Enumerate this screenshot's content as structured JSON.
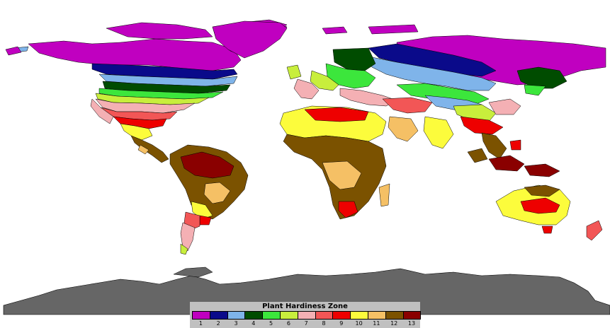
{
  "legend": {
    "title": "Plant Hardiness Zone",
    "zones": [
      {
        "label": "1",
        "color": "#c000c0"
      },
      {
        "label": "2",
        "color": "#0a0a8a"
      },
      {
        "label": "3",
        "color": "#7fb4ea"
      },
      {
        "label": "4",
        "color": "#004c00"
      },
      {
        "label": "5",
        "color": "#3ce63c"
      },
      {
        "label": "6",
        "color": "#c8ee3c"
      },
      {
        "label": "7",
        "color": "#f4b0b4"
      },
      {
        "label": "8",
        "color": "#f25656"
      },
      {
        "label": "9",
        "color": "#ee0000"
      },
      {
        "label": "10",
        "color": "#fcfc3c"
      },
      {
        "label": "11",
        "color": "#f5c065"
      },
      {
        "label": "12",
        "color": "#7b5200"
      },
      {
        "label": "13",
        "color": "#8a0000"
      }
    ]
  },
  "map": {
    "antarctica_color": "#666666",
    "ocean_color": "#ffffff",
    "border_color": "#000000"
  }
}
